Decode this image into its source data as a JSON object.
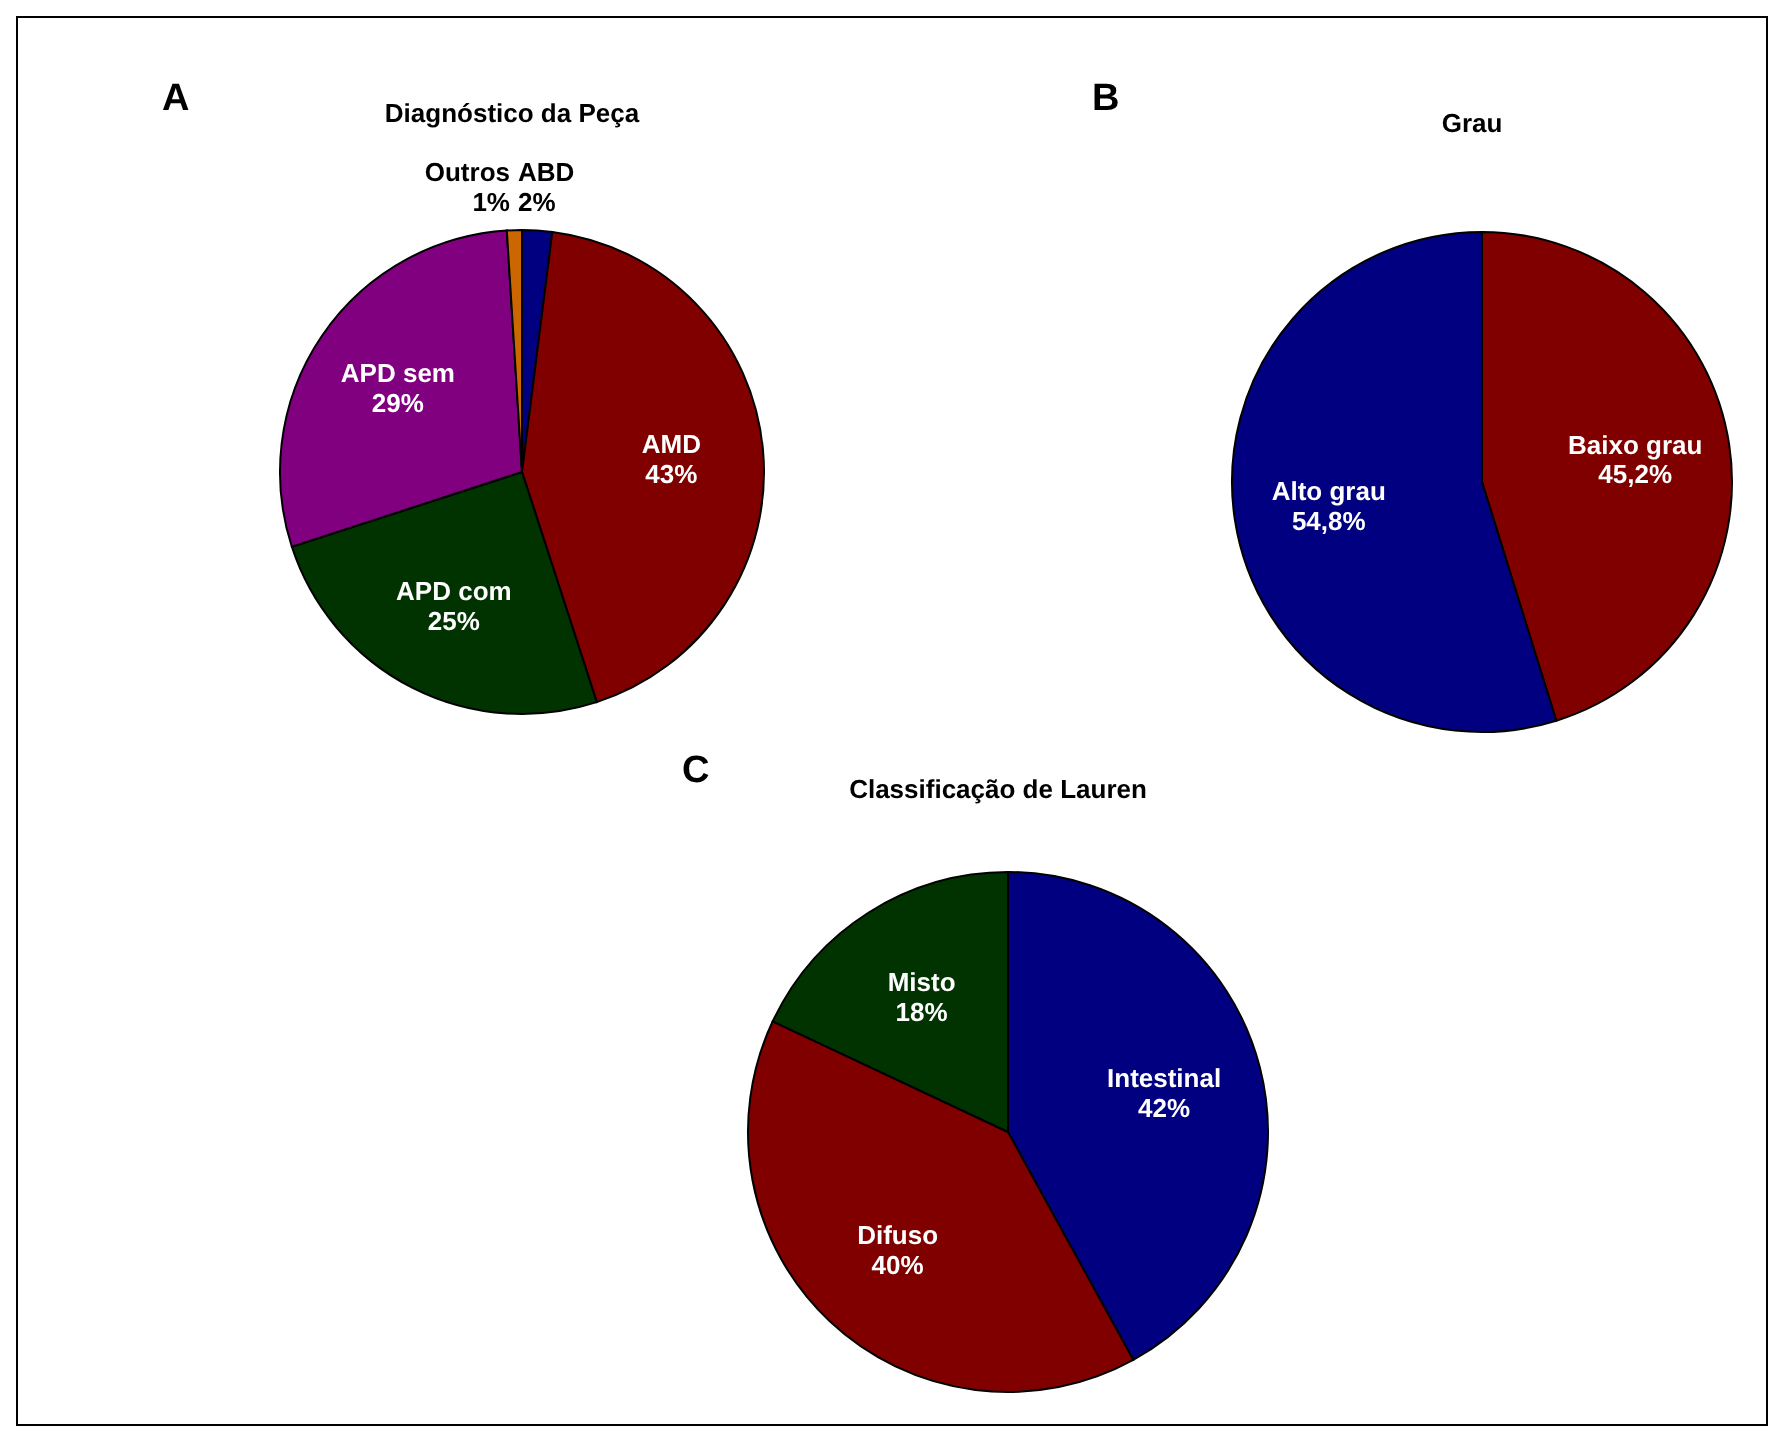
{
  "chart_data": [
    {
      "type": "pie",
      "title": "Diagnóstico da Peça",
      "annotations": [
        "A"
      ],
      "categories": [
        "ABD",
        "AMD",
        "APD com",
        "APD sem",
        "Outros"
      ],
      "values": [
        2,
        43,
        25,
        29,
        1
      ],
      "colors": [
        "#000080",
        "#800000",
        "#003300",
        "#800080",
        "#cc6600"
      ],
      "value_labels": [
        "2%",
        "43%",
        "25%",
        "29%",
        "1%"
      ]
    },
    {
      "type": "pie",
      "title": "Grau",
      "annotations": [
        "B"
      ],
      "categories": [
        "Baixo grau",
        "Alto grau"
      ],
      "values": [
        45.2,
        54.8
      ],
      "colors": [
        "#800000",
        "#000080"
      ],
      "value_labels": [
        "45,2%",
        "54,8%"
      ]
    },
    {
      "type": "pie",
      "title": "Classificação de Lauren",
      "annotations": [
        "C"
      ],
      "categories": [
        "Intestinal",
        "Difuso",
        "Misto"
      ],
      "values": [
        42,
        40,
        18
      ],
      "colors": [
        "#000080",
        "#800000",
        "#003300"
      ],
      "value_labels": [
        "42%",
        "40%",
        "18%"
      ]
    }
  ]
}
